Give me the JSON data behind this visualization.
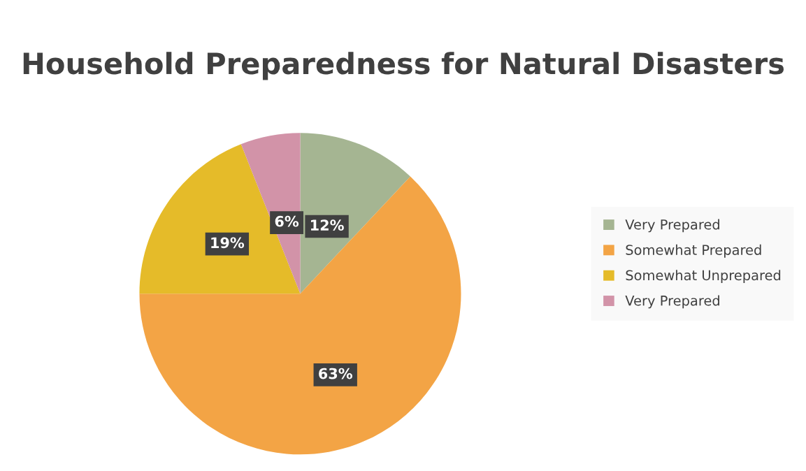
{
  "chart_data": {
    "type": "pie",
    "title": "Household Preparedness for Natural Disasters",
    "categories": [
      "Very Prepared",
      "Somewhat Prepared",
      "Somewhat Unprepared",
      "Very Prepared"
    ],
    "values": [
      12,
      63,
      19,
      6
    ],
    "colors": [
      "#a5b592",
      "#f3a445",
      "#e5bb29",
      "#d293a8"
    ],
    "value_labels": [
      "12%",
      "63%",
      "19%",
      "6%"
    ],
    "legend": "right"
  }
}
